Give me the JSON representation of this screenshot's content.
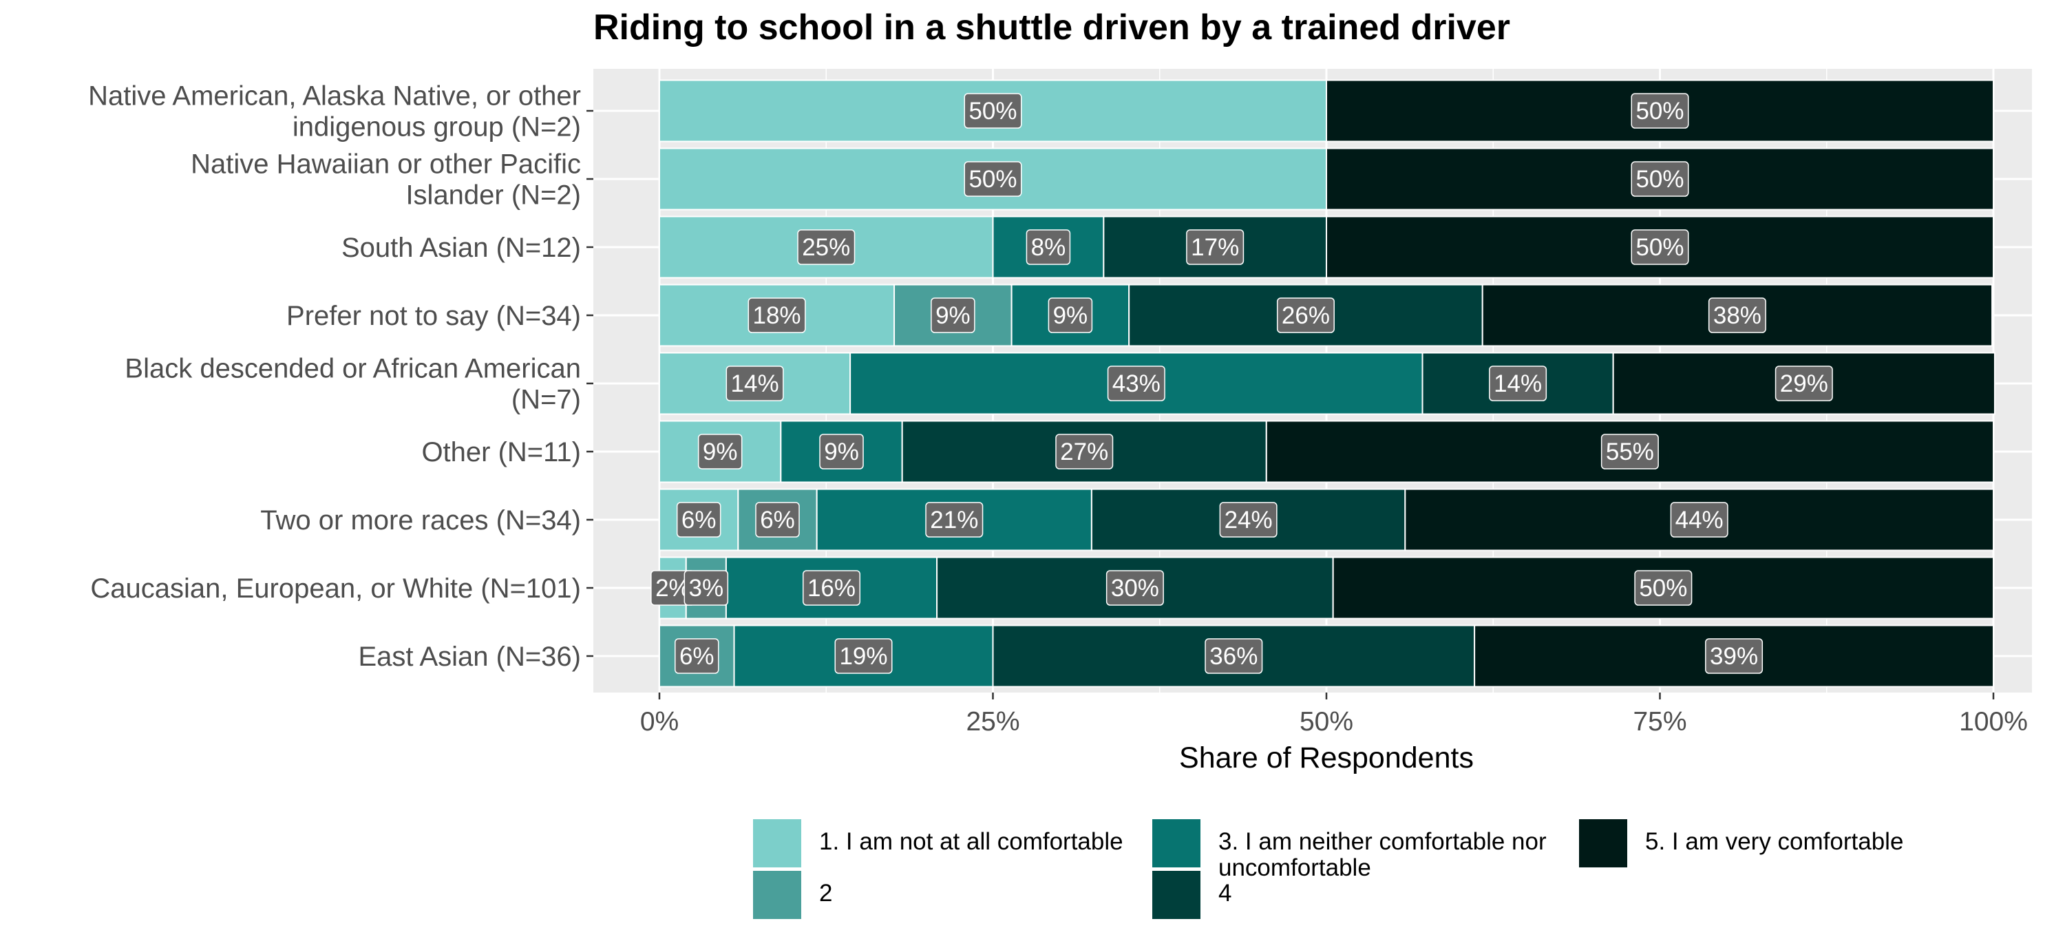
{
  "chart_data": {
    "type": "bar",
    "orientation": "horizontal",
    "stacked": true,
    "title": "Riding to school in a shuttle driven by a trained driver",
    "xlabel": "Share of Respondents",
    "ylabel": "",
    "xlim": [
      0,
      1
    ],
    "x_ticks": [
      "0%",
      "25%",
      "50%",
      "75%",
      "100%"
    ],
    "x_tick_values": [
      0,
      0.25,
      0.5,
      0.75,
      1.0
    ],
    "grid": true,
    "legend_position": "bottom",
    "categories": [
      "Native American, Alaska Native, or other indigenous group (N=2)",
      "Native Hawaiian or other Pacific Islander (N=2)",
      "South Asian (N=12)",
      "Prefer not to say (N=34)",
      "Black descended or African American (N=7)",
      "Other (N=11)",
      "Two or more races (N=34)",
      "Caucasian, European, or White (N=101)",
      "East Asian (N=36)"
    ],
    "category_lines": [
      [
        "Native American, Alaska Native, or other",
        "indigenous group (N=2)"
      ],
      [
        "Native Hawaiian or other Pacific",
        "Islander (N=2)"
      ],
      [
        "South Asian (N=12)"
      ],
      [
        "Prefer not to say (N=34)"
      ],
      [
        "Black descended or African American",
        "(N=7)"
      ],
      [
        "Other (N=11)"
      ],
      [
        "Two or more races (N=34)"
      ],
      [
        "Caucasian, European, or White (N=101)"
      ],
      [
        "East Asian (N=36)"
      ]
    ],
    "series": [
      {
        "name": "1. I am not at all comfortable",
        "legend_lines": [
          "1. I am not at all comfortable"
        ],
        "color": "#7ccfca",
        "values": [
          0.5,
          0.5,
          0.25,
          0.176,
          0.143,
          0.091,
          0.059,
          0.02,
          0.0
        ]
      },
      {
        "name": "2",
        "legend_lines": [
          "2"
        ],
        "color": "#4a9f9a",
        "values": [
          0.0,
          0.0,
          0.0,
          0.088,
          0.0,
          0.0,
          0.059,
          0.03,
          0.056
        ]
      },
      {
        "name": "3. I am neither comfortable nor uncomfortable",
        "legend_lines": [
          "3. I am neither comfortable nor",
          "uncomfortable"
        ],
        "color": "#077470",
        "values": [
          0.0,
          0.0,
          0.083,
          0.088,
          0.429,
          0.091,
          0.206,
          0.158,
          0.194
        ]
      },
      {
        "name": "4",
        "legend_lines": [
          "4"
        ],
        "color": "#003f3b",
        "values": [
          0.0,
          0.0,
          0.167,
          0.265,
          0.143,
          0.273,
          0.235,
          0.297,
          0.361
        ]
      },
      {
        "name": "5. I am very comfortable",
        "legend_lines": [
          "5. I am very comfortable"
        ],
        "color": "#001a17",
        "values": [
          0.5,
          0.5,
          0.5,
          0.382,
          0.286,
          0.545,
          0.441,
          0.495,
          0.389
        ]
      }
    ],
    "data_labels": [
      [
        "50%",
        "",
        "",
        "",
        "50%"
      ],
      [
        "50%",
        "",
        "",
        "",
        "50%"
      ],
      [
        "25%",
        "",
        "8%",
        "17%",
        "50%"
      ],
      [
        "18%",
        "9%",
        "9%",
        "26%",
        "38%"
      ],
      [
        "14%",
        "",
        "43%",
        "14%",
        "29%"
      ],
      [
        "9%",
        "",
        "9%",
        "27%",
        "55%"
      ],
      [
        "6%",
        "6%",
        "21%",
        "24%",
        "44%"
      ],
      [
        "2%",
        "3%",
        "16%",
        "30%",
        "50%"
      ],
      [
        "",
        "6%",
        "19%",
        "36%",
        "39%"
      ]
    ],
    "colors": {
      "panel_background": "#ebebeb",
      "grid_line": "#ffffff",
      "label_box": "#666666",
      "label_text": "#ffffff"
    }
  }
}
